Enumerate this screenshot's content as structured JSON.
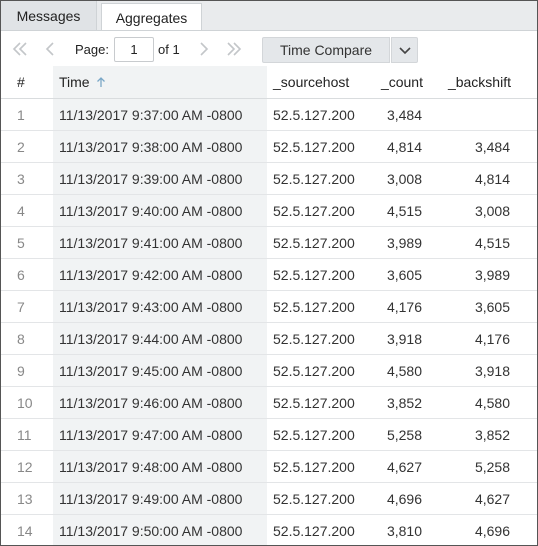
{
  "tabs": [
    {
      "label": "Messages",
      "active": false
    },
    {
      "label": "Aggregates",
      "active": true
    }
  ],
  "toolbar": {
    "page_label": "Page:",
    "page_value": "1",
    "of_label": "of 1",
    "time_compare_label": "Time Compare"
  },
  "table": {
    "headers": {
      "num": "#",
      "time": "Time",
      "sourcehost": "_sourcehost",
      "count": "_count",
      "backshift": "_backshift"
    },
    "rows": [
      {
        "num": "1",
        "time": "11/13/2017 9:37:00 AM -0800",
        "sourcehost": "52.5.127.200",
        "count": "3,484",
        "backshift": ""
      },
      {
        "num": "2",
        "time": "11/13/2017 9:38:00 AM -0800",
        "sourcehost": "52.5.127.200",
        "count": "4,814",
        "backshift": "3,484"
      },
      {
        "num": "3",
        "time": "11/13/2017 9:39:00 AM -0800",
        "sourcehost": "52.5.127.200",
        "count": "3,008",
        "backshift": "4,814"
      },
      {
        "num": "4",
        "time": "11/13/2017 9:40:00 AM -0800",
        "sourcehost": "52.5.127.200",
        "count": "4,515",
        "backshift": "3,008"
      },
      {
        "num": "5",
        "time": "11/13/2017 9:41:00 AM -0800",
        "sourcehost": "52.5.127.200",
        "count": "3,989",
        "backshift": "4,515"
      },
      {
        "num": "6",
        "time": "11/13/2017 9:42:00 AM -0800",
        "sourcehost": "52.5.127.200",
        "count": "3,605",
        "backshift": "3,989"
      },
      {
        "num": "7",
        "time": "11/13/2017 9:43:00 AM -0800",
        "sourcehost": "52.5.127.200",
        "count": "4,176",
        "backshift": "3,605"
      },
      {
        "num": "8",
        "time": "11/13/2017 9:44:00 AM -0800",
        "sourcehost": "52.5.127.200",
        "count": "3,918",
        "backshift": "4,176"
      },
      {
        "num": "9",
        "time": "11/13/2017 9:45:00 AM -0800",
        "sourcehost": "52.5.127.200",
        "count": "4,580",
        "backshift": "3,918"
      },
      {
        "num": "10",
        "time": "11/13/2017 9:46:00 AM -0800",
        "sourcehost": "52.5.127.200",
        "count": "3,852",
        "backshift": "4,580"
      },
      {
        "num": "11",
        "time": "11/13/2017 9:47:00 AM -0800",
        "sourcehost": "52.5.127.200",
        "count": "5,258",
        "backshift": "3,852"
      },
      {
        "num": "12",
        "time": "11/13/2017 9:48:00 AM -0800",
        "sourcehost": "52.5.127.200",
        "count": "4,627",
        "backshift": "5,258"
      },
      {
        "num": "13",
        "time": "11/13/2017 9:49:00 AM -0800",
        "sourcehost": "52.5.127.200",
        "count": "4,696",
        "backshift": "4,627"
      },
      {
        "num": "14",
        "time": "11/13/2017 9:50:00 AM -0800",
        "sourcehost": "52.5.127.200",
        "count": "3,810",
        "backshift": "4,696"
      }
    ]
  },
  "icons": {
    "first_page": "double-chevron-left-icon",
    "prev_page": "chevron-left-icon",
    "next_page": "chevron-right-icon",
    "last_page": "double-chevron-right-icon",
    "dropdown": "chevron-down-icon",
    "sort": "arrow-up-icon"
  },
  "colors": {
    "tab_strip": "#e9ebed",
    "time_column_bg": "#f1f3f4",
    "button_bg": "#e4e7ea",
    "disabled_icon": "#c3c6c9",
    "sort_arrow": "#7aa7c7"
  }
}
